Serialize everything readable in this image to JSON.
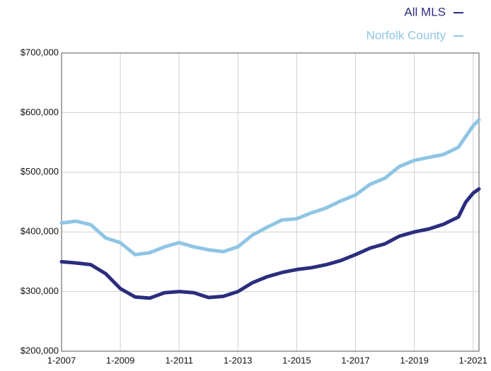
{
  "chart_data": {
    "type": "line",
    "x": [
      2007.0,
      2007.5,
      2008.0,
      2008.5,
      2009.0,
      2009.5,
      2010.0,
      2010.5,
      2011.0,
      2011.5,
      2012.0,
      2012.5,
      2013.0,
      2013.5,
      2014.0,
      2014.5,
      2015.0,
      2015.5,
      2016.0,
      2016.5,
      2017.0,
      2017.5,
      2018.0,
      2018.5,
      2019.0,
      2019.5,
      2020.0,
      2020.5,
      2020.75,
      2021.0,
      2021.2
    ],
    "series": [
      {
        "name": "All MLS",
        "color": "#2b2d7e",
        "values": [
          350000,
          348000,
          345000,
          330000,
          305000,
          291000,
          289000,
          298000,
          300000,
          298000,
          290000,
          292000,
          300000,
          315000,
          325000,
          332000,
          337000,
          340000,
          345000,
          352000,
          362000,
          373000,
          380000,
          393000,
          400000,
          405000,
          413000,
          425000,
          450000,
          465000,
          472000
        ]
      },
      {
        "name": "Norfolk County",
        "color": "#8fc5e4",
        "values": [
          415000,
          418000,
          412000,
          390000,
          382000,
          362000,
          365000,
          375000,
          382000,
          375000,
          370000,
          367000,
          375000,
          395000,
          408000,
          420000,
          422000,
          432000,
          440000,
          452000,
          462000,
          480000,
          490000,
          510000,
          520000,
          525000,
          530000,
          542000,
          560000,
          578000,
          588000
        ]
      }
    ],
    "xlim": [
      2007,
      2021.2
    ],
    "xticks": [
      {
        "value": 2007,
        "label": "1-2007"
      },
      {
        "value": 2009,
        "label": "1-2009"
      },
      {
        "value": 2011,
        "label": "1-2011"
      },
      {
        "value": 2013,
        "label": "1-2013"
      },
      {
        "value": 2015,
        "label": "1-2015"
      },
      {
        "value": 2017,
        "label": "1-2017"
      },
      {
        "value": 2019,
        "label": "1-2019"
      },
      {
        "value": 2021,
        "label": "1-2021"
      }
    ],
    "ylim": [
      200000,
      700000
    ],
    "yticks": [
      {
        "value": 200000,
        "label": "$200,000"
      },
      {
        "value": 300000,
        "label": "$300,000"
      },
      {
        "value": 400000,
        "label": "$400,000"
      },
      {
        "value": 500000,
        "label": "$500,000"
      },
      {
        "value": 600000,
        "label": "$600,000"
      },
      {
        "value": 700000,
        "label": "$700,000"
      }
    ],
    "grid": true,
    "legend": "top-right"
  }
}
